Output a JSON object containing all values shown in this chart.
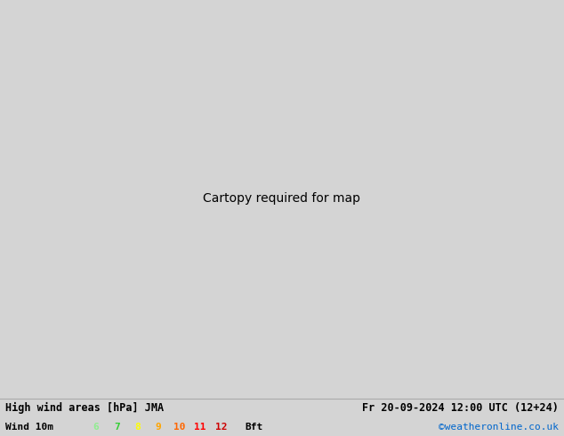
{
  "title_left": "High wind areas [hPa] JMA",
  "title_right": "Fr 20-09-2024 12:00 UTC (12+24)",
  "wind_label": "Wind 10m",
  "beaufort_numbers": [
    "6",
    "7",
    "8",
    "9",
    "10",
    "11",
    "12"
  ],
  "beaufort_colors": [
    "#90EE90",
    "#32cd32",
    "#ffff00",
    "#ffa500",
    "#ff6600",
    "#ff0000",
    "#cc0000"
  ],
  "beaufort_suffix": "Bft",
  "website": "©weatheronline.co.uk",
  "website_color": "#0066cc",
  "background_color": "#d4d4d4",
  "land_color": "#c8c8c8",
  "europe_land_color": "#b4d4a0",
  "ocean_color": "#d4d4d4",
  "high_wind_light": "#c8f0c8",
  "high_wind_medium": "#90d890",
  "high_wind_strong": "#32cd32",
  "fig_width": 6.34,
  "fig_height": 4.9,
  "bottom_bar_color": "#d8d8d8",
  "font_size_title": 8.5,
  "font_size_legend": 8,
  "map_extent": [
    -60,
    60,
    20,
    80
  ],
  "red_isobar_color": "#cc0000",
  "black_isobar_color": "#000000",
  "blue_isobar_color": "#0000cc"
}
